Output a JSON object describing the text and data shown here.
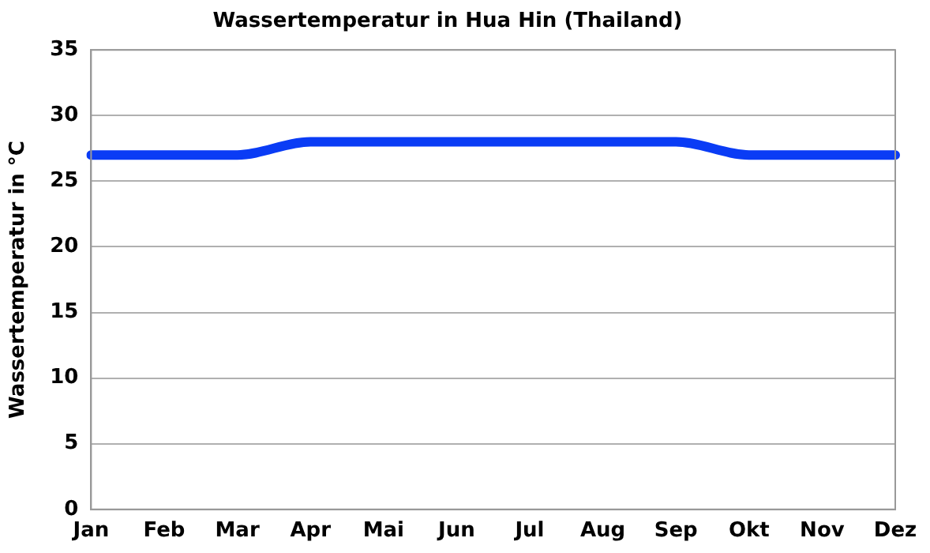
{
  "chart_data": {
    "type": "line",
    "title": "Wassertemperatur in Hua Hin (Thailand)",
    "ylabel": "Wassertemperatur in °C",
    "categories": [
      "Jan",
      "Feb",
      "Mar",
      "Apr",
      "Mai",
      "Jun",
      "Jul",
      "Aug",
      "Sep",
      "Okt",
      "Nov",
      "Dez"
    ],
    "series": [
      {
        "color": "#0a3cf5",
        "values": [
          27,
          27,
          27,
          28,
          28,
          28,
          28,
          28,
          28,
          27,
          27,
          27
        ]
      }
    ],
    "ylim": [
      0,
      35
    ],
    "yticks": [
      0,
      5,
      10,
      15,
      20,
      25,
      30,
      35
    ],
    "grid": "y",
    "legend": false,
    "marker": "none",
    "line_style": "solid"
  }
}
